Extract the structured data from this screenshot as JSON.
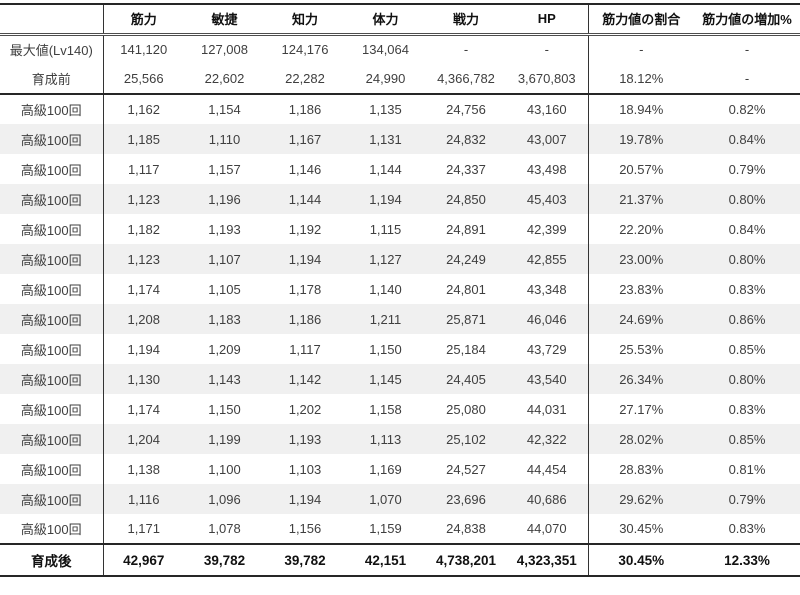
{
  "colors": {
    "background": "#ffffff",
    "stripe": "#f0f0f0",
    "border_dark": "#262626",
    "divider": "#333333",
    "text": "#3f3f3f",
    "heading_text": "#111111"
  },
  "chart_data": {
    "type": "table",
    "columns": [
      "",
      "筋力",
      "敏捷",
      "知力",
      "体力",
      "戦力",
      "HP",
      "筋力値の割合",
      "筋力値の増加%"
    ],
    "rows": [
      {
        "kind": "summary",
        "label": "最大値(Lv140)",
        "values": [
          "141,120",
          "127,008",
          "124,176",
          "134,064",
          "-",
          "-",
          "-",
          "-"
        ]
      },
      {
        "kind": "summary-last",
        "label": "育成前",
        "values": [
          "25,566",
          "22,602",
          "22,282",
          "24,990",
          "4,366,782",
          "3,670,803",
          "18.12%",
          "-"
        ]
      },
      {
        "kind": "training",
        "label": "高級100回",
        "values": [
          "1,162",
          "1,154",
          "1,186",
          "1,135",
          "24,756",
          "43,160",
          "18.94%",
          "0.82%"
        ]
      },
      {
        "kind": "training",
        "label": "高級100回",
        "values": [
          "1,185",
          "1,110",
          "1,167",
          "1,131",
          "24,832",
          "43,007",
          "19.78%",
          "0.84%"
        ]
      },
      {
        "kind": "training",
        "label": "高級100回",
        "values": [
          "1,117",
          "1,157",
          "1,146",
          "1,144",
          "24,337",
          "43,498",
          "20.57%",
          "0.79%"
        ]
      },
      {
        "kind": "training",
        "label": "高級100回",
        "values": [
          "1,123",
          "1,196",
          "1,144",
          "1,194",
          "24,850",
          "45,403",
          "21.37%",
          "0.80%"
        ]
      },
      {
        "kind": "training",
        "label": "高級100回",
        "values": [
          "1,182",
          "1,193",
          "1,192",
          "1,115",
          "24,891",
          "42,399",
          "22.20%",
          "0.84%"
        ]
      },
      {
        "kind": "training",
        "label": "高級100回",
        "values": [
          "1,123",
          "1,107",
          "1,194",
          "1,127",
          "24,249",
          "42,855",
          "23.00%",
          "0.80%"
        ]
      },
      {
        "kind": "training",
        "label": "高級100回",
        "values": [
          "1,174",
          "1,105",
          "1,178",
          "1,140",
          "24,801",
          "43,348",
          "23.83%",
          "0.83%"
        ]
      },
      {
        "kind": "training",
        "label": "高級100回",
        "values": [
          "1,208",
          "1,183",
          "1,186",
          "1,211",
          "25,871",
          "46,046",
          "24.69%",
          "0.86%"
        ]
      },
      {
        "kind": "training",
        "label": "高級100回",
        "values": [
          "1,194",
          "1,209",
          "1,117",
          "1,150",
          "25,184",
          "43,729",
          "25.53%",
          "0.85%"
        ]
      },
      {
        "kind": "training",
        "label": "高級100回",
        "values": [
          "1,130",
          "1,143",
          "1,142",
          "1,145",
          "24,405",
          "43,540",
          "26.34%",
          "0.80%"
        ]
      },
      {
        "kind": "training",
        "label": "高級100回",
        "values": [
          "1,174",
          "1,150",
          "1,202",
          "1,158",
          "25,080",
          "44,031",
          "27.17%",
          "0.83%"
        ]
      },
      {
        "kind": "training",
        "label": "高級100回",
        "values": [
          "1,204",
          "1,199",
          "1,193",
          "1,113",
          "25,102",
          "42,322",
          "28.02%",
          "0.85%"
        ]
      },
      {
        "kind": "training",
        "label": "高級100回",
        "values": [
          "1,138",
          "1,100",
          "1,103",
          "1,169",
          "24,527",
          "44,454",
          "28.83%",
          "0.81%"
        ]
      },
      {
        "kind": "training",
        "label": "高級100回",
        "values": [
          "1,116",
          "1,096",
          "1,194",
          "1,070",
          "23,696",
          "40,686",
          "29.62%",
          "0.79%"
        ]
      },
      {
        "kind": "training",
        "label": "高級100回",
        "values": [
          "1,171",
          "1,078",
          "1,156",
          "1,159",
          "24,838",
          "44,070",
          "30.45%",
          "0.83%"
        ]
      },
      {
        "kind": "footer",
        "label": "育成後",
        "values": [
          "42,967",
          "39,782",
          "39,782",
          "42,151",
          "4,738,201",
          "4,323,351",
          "30.45%",
          "12.33%"
        ]
      }
    ]
  }
}
